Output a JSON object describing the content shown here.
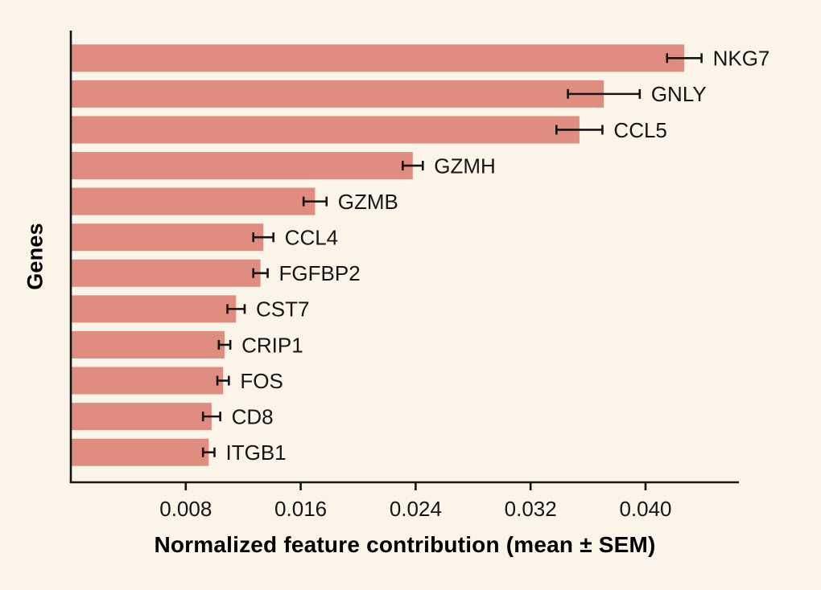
{
  "chart_data": {
    "type": "bar",
    "orientation": "horizontal",
    "title": "",
    "xlabel": "Normalized feature contribution (mean ± SEM)",
    "ylabel": "Genes",
    "xlim": [
      0,
      0.0465
    ],
    "xticks": [
      0.008,
      0.016,
      0.024,
      0.032,
      0.04
    ],
    "xtick_labels": [
      "0.008",
      "0.016",
      "0.024",
      "0.032",
      "0.040"
    ],
    "grid": false,
    "legend": false,
    "bar_color": "#df8d81",
    "background_color": "#fbf4e9",
    "text_color": "#151515",
    "categories": [
      "NKG7",
      "GNLY",
      "CCL5",
      "GZMH",
      "GZMB",
      "CCL4",
      "FGFBP2",
      "CST7",
      "CRIP1",
      "FOS",
      "CD8",
      "ITGB1"
    ],
    "values": [
      0.0427,
      0.0371,
      0.0354,
      0.0238,
      0.017,
      0.0134,
      0.0132,
      0.0115,
      0.0107,
      0.0106,
      0.0098,
      0.0096
    ],
    "sem": [
      0.0012,
      0.0025,
      0.0016,
      0.0007,
      0.0008,
      0.0007,
      0.0005,
      0.0006,
      0.0004,
      0.0004,
      0.0006,
      0.0004
    ]
  }
}
